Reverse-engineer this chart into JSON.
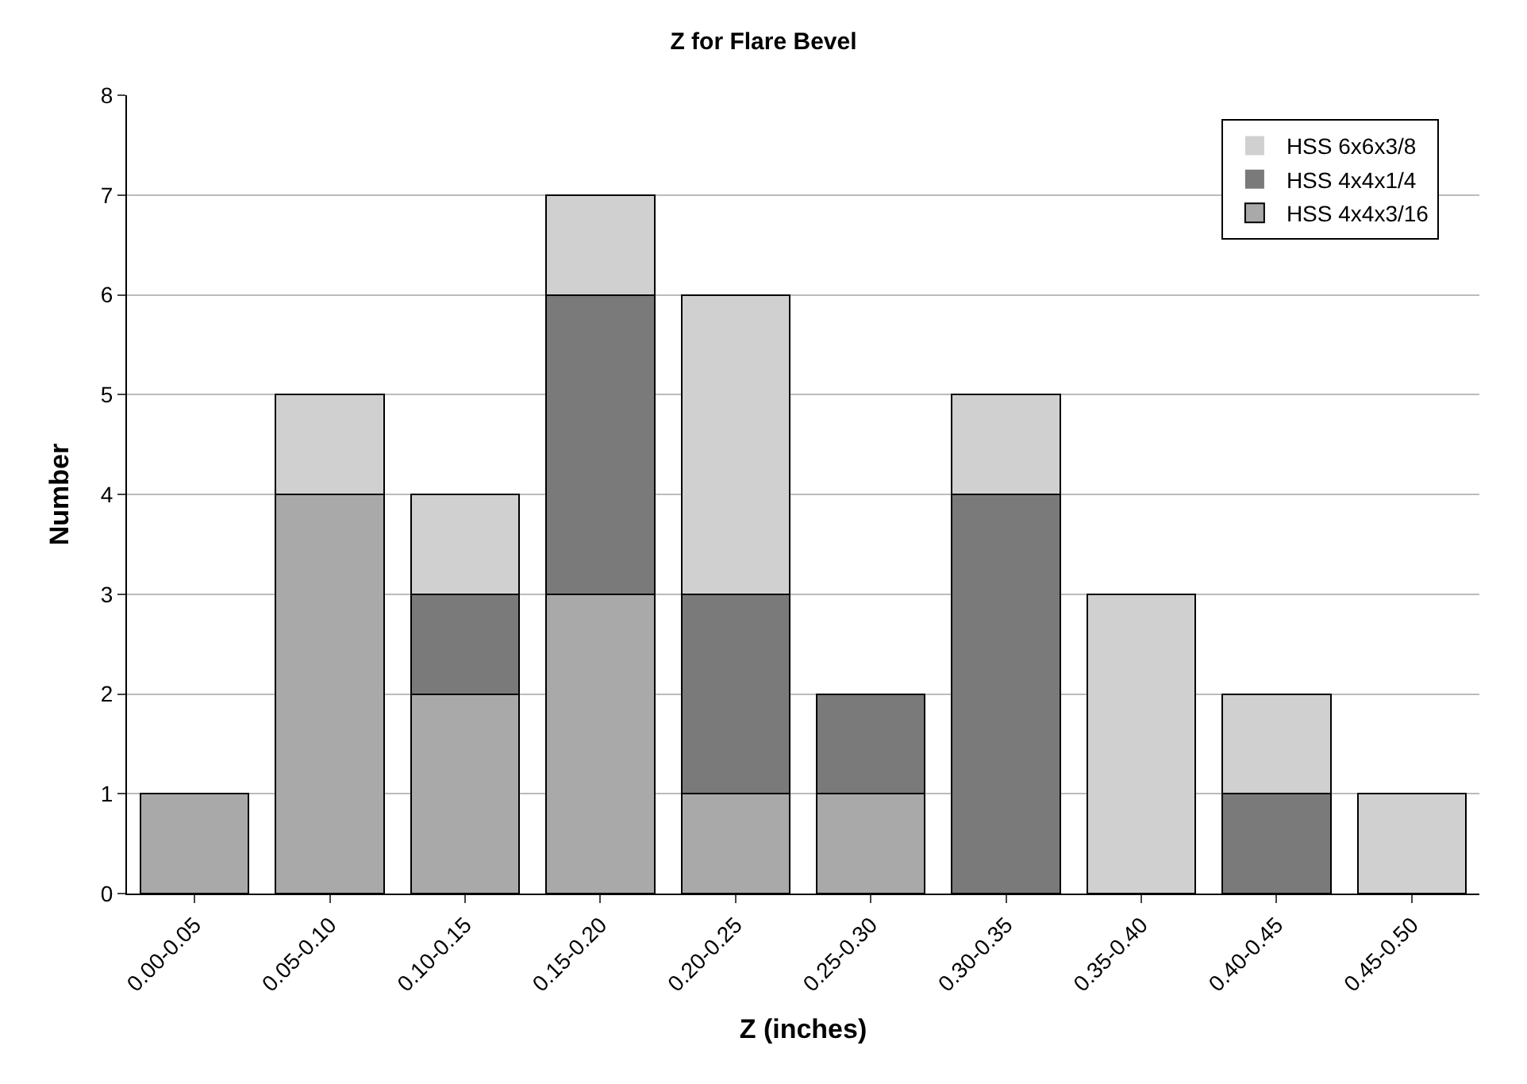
{
  "chart_data": {
    "type": "bar",
    "stacked": true,
    "title": "Z for Flare Bevel",
    "xlabel": "Z (inches)",
    "ylabel": "Number",
    "categories": [
      "0.00-0.05",
      "0.05-0.10",
      "0.10-0.15",
      "0.15-0.20",
      "0.20-0.25",
      "0.25-0.30",
      "0.30-0.35",
      "0.35-0.40",
      "0.40-0.45",
      "0.45-0.50"
    ],
    "series": [
      {
        "name": "HSS 4x4x3/16",
        "color": "#a9a9a9",
        "values": [
          1,
          4,
          2,
          3,
          1,
          1,
          0,
          0,
          0,
          0
        ]
      },
      {
        "name": "HSS 4x4x1/4",
        "color": "#7a7a7a",
        "values": [
          0,
          0,
          1,
          3,
          2,
          1,
          4,
          0,
          1,
          0
        ]
      },
      {
        "name": "HSS 6x6x3/8",
        "color": "#d0d0d0",
        "values": [
          0,
          1,
          1,
          1,
          3,
          0,
          1,
          3,
          1,
          1
        ]
      }
    ],
    "ylim": [
      0,
      8
    ],
    "yticks": [
      0,
      1,
      2,
      3,
      4,
      5,
      6,
      7,
      8
    ],
    "grid": "y",
    "legend": "top right"
  }
}
